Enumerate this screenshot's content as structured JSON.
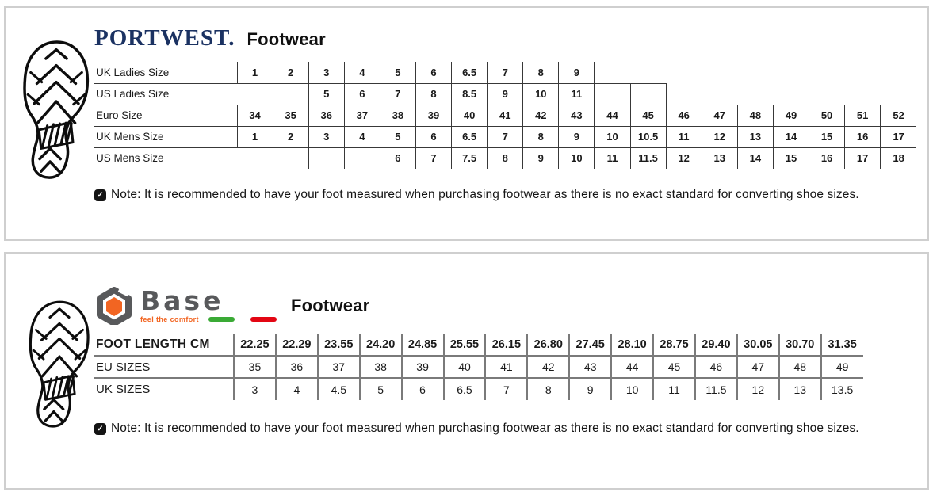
{
  "colors": {
    "navy": "#1b3262",
    "basegray": "#58595b",
    "orange": "#f26522",
    "green": "#3aaa35",
    "red": "#e30613"
  },
  "icons": {
    "note_check": "✓",
    "shoeprint": "boot-sole-print",
    "base_nut": "hex-nut-with-orange-hexagon"
  },
  "portwest": {
    "brand": "PORTWEST.",
    "title": "Footwear",
    "note": "Note: It is recommended to have your foot measured when purchasing footwear as there is no exact standard for converting shoe sizes.",
    "table": {
      "rows": [
        {
          "label": "UK Ladies Size",
          "cells": [
            "1",
            "2",
            "3",
            "4",
            "5",
            "6",
            "6.5",
            "7",
            "8",
            "9",
            null,
            null,
            null,
            null,
            null,
            null,
            null,
            null,
            null
          ]
        },
        {
          "label": "US Ladies Size",
          "cells": [
            null,
            "",
            "5",
            "6",
            "7",
            "8",
            "8.5",
            "9",
            "10",
            "11",
            "",
            "",
            null,
            null,
            null,
            null,
            null,
            null,
            null
          ]
        },
        {
          "label": "Euro Size",
          "cells": [
            "34",
            "35",
            "36",
            "37",
            "38",
            "39",
            "40",
            "41",
            "42",
            "43",
            "44",
            "45",
            "46",
            "47",
            "48",
            "49",
            "50",
            "51",
            "52"
          ]
        },
        {
          "label": "UK Mens Size",
          "cells": [
            "1",
            "2",
            "3",
            "4",
            "5",
            "6",
            "6.5",
            "7",
            "8",
            "9",
            "10",
            "10.5",
            "11",
            "12",
            "13",
            "14",
            "15",
            "16",
            "17"
          ]
        },
        {
          "label": "US Mens Size",
          "cells": [
            null,
            null,
            "",
            "",
            "6",
            "7",
            "7.5",
            "8",
            "9",
            "10",
            "11",
            "11.5",
            "12",
            "13",
            "14",
            "15",
            "16",
            "17",
            "18"
          ]
        }
      ]
    }
  },
  "base": {
    "brand": "Base",
    "tagline": "feel the comfort",
    "title": "Footwear",
    "note": "Note: It is recommended to have your foot measured when purchasing footwear as there is no exact standard for converting shoe sizes.",
    "table": {
      "rows": [
        {
          "label": "FOOT LENGTH CM",
          "header": true,
          "cells": [
            "22.25",
            "22.29",
            "23.55",
            "24.20",
            "24.85",
            "25.55",
            "26.15",
            "26.80",
            "27.45",
            "28.10",
            "28.75",
            "29.40",
            "30.05",
            "30.70",
            "31.35"
          ]
        },
        {
          "label": "EU SIZES",
          "cells": [
            "35",
            "36",
            "37",
            "38",
            "39",
            "40",
            "41",
            "42",
            "43",
            "44",
            "45",
            "46",
            "47",
            "48",
            "49"
          ]
        },
        {
          "label": "UK SIZES",
          "cells": [
            "3",
            "4",
            "4.5",
            "5",
            "6",
            "6.5",
            "7",
            "8",
            "9",
            "10",
            "11",
            "11.5",
            "12",
            "13",
            "13.5"
          ]
        }
      ]
    }
  }
}
